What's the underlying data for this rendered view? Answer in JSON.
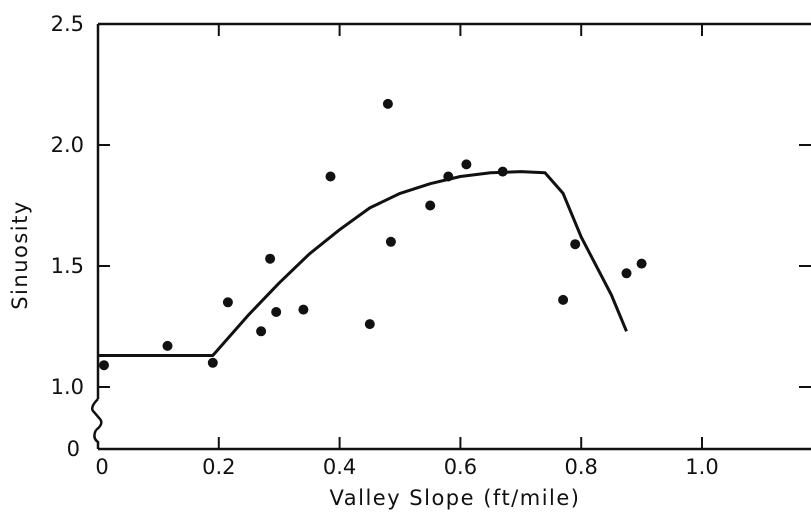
{
  "chart_data": {
    "type": "scatter",
    "title": "",
    "xlabel": "Valley Slope (ft/mile)",
    "ylabel": "Sinuosity",
    "xlim": [
      0,
      1.2
    ],
    "ylim": [
      0,
      2.5
    ],
    "y_axis_break": true,
    "grid": false,
    "x_ticks": [
      {
        "value": 0,
        "label": "0"
      },
      {
        "value": 0.2,
        "label": "0.2"
      },
      {
        "value": 0.4,
        "label": "0.4"
      },
      {
        "value": 0.6,
        "label": "0.6"
      },
      {
        "value": 0.8,
        "label": "0.8"
      },
      {
        "value": 1.0,
        "label": "1.0"
      }
    ],
    "y_ticks": [
      {
        "value": 0,
        "label": "0"
      },
      {
        "value": 1.0,
        "label": "1.0"
      },
      {
        "value": 1.5,
        "label": "1.5"
      },
      {
        "value": 2.0,
        "label": "2.0"
      },
      {
        "value": 2.5,
        "label": "2.5"
      }
    ],
    "points": {
      "x": [
        0.01,
        0.115,
        0.19,
        0.215,
        0.27,
        0.285,
        0.295,
        0.34,
        0.385,
        0.45,
        0.48,
        0.485,
        0.55,
        0.58,
        0.61,
        0.67,
        0.77,
        0.79,
        0.875,
        0.9
      ],
      "y": [
        1.09,
        1.17,
        1.1,
        1.35,
        1.23,
        1.53,
        1.31,
        1.32,
        1.87,
        1.26,
        2.17,
        1.6,
        1.75,
        1.87,
        1.92,
        1.89,
        1.36,
        1.59,
        1.47,
        1.51
      ]
    },
    "curve": {
      "x": [
        0,
        0.19,
        0.25,
        0.3,
        0.35,
        0.4,
        0.45,
        0.5,
        0.55,
        0.6,
        0.65,
        0.7,
        0.74,
        0.77,
        0.8,
        0.85,
        0.875
      ],
      "y": [
        1.13,
        1.13,
        1.3,
        1.43,
        1.55,
        1.65,
        1.74,
        1.8,
        1.84,
        1.87,
        1.885,
        1.89,
        1.885,
        1.8,
        1.62,
        1.38,
        1.23
      ]
    },
    "colors": {
      "ink": "#111111",
      "background": "#ffffff"
    }
  }
}
